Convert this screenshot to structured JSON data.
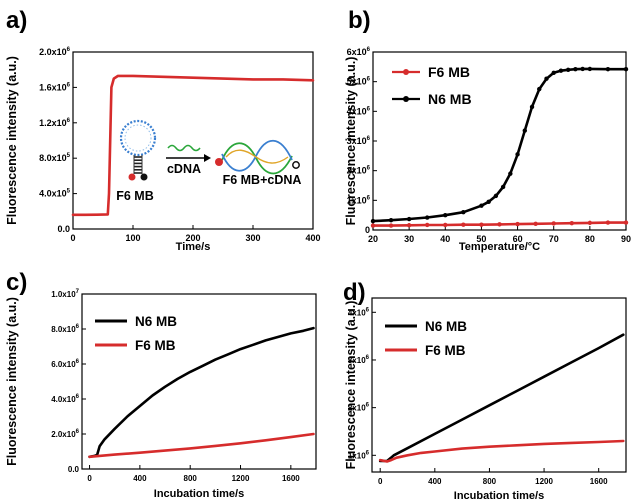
{
  "colors": {
    "red": "#d62c2c",
    "black": "#000000",
    "axis": "#000000"
  },
  "chart_data": [
    {
      "type": "line",
      "panel_label": "a)",
      "xlabel": "Time/s",
      "ylabel": "Fluorescence intensity (a.u.)",
      "xlim": [
        0,
        400
      ],
      "ylim": [
        0,
        2000000
      ],
      "x_ticks": [
        "0",
        "100",
        "200",
        "300",
        "400"
      ],
      "y_ticks": [
        {
          "mant": "0.0",
          "exp": ""
        },
        {
          "mant": "4.0x10",
          "exp": "5"
        },
        {
          "mant": "8.0x10",
          "exp": "5"
        },
        {
          "mant": "1.2x10",
          "exp": "6"
        },
        {
          "mant": "1.6x10",
          "exp": "6"
        },
        {
          "mant": "2.0x10",
          "exp": "6"
        }
      ],
      "series": [
        {
          "color": "#d62c2c",
          "x": [
            0,
            20,
            40,
            58,
            60,
            62,
            64,
            68,
            75,
            100,
            150,
            200,
            250,
            300,
            350,
            400
          ],
          "y": [
            160000,
            160000,
            162000,
            165000,
            400000,
            1000000,
            1600000,
            1700000,
            1730000,
            1730000,
            1720000,
            1710000,
            1700000,
            1690000,
            1690000,
            1680000
          ]
        }
      ],
      "annotations": {
        "probe_label": "F6 MB",
        "arrow_label": "cDNA",
        "product_label": "F6 MB+cDNA"
      }
    },
    {
      "type": "line",
      "panel_label": "b)",
      "xlabel": "Temperature/°C",
      "ylabel": "Fluorescence intensity (a.u.)",
      "xlim": [
        20,
        90
      ],
      "ylim": [
        0,
        6000000
      ],
      "x_ticks": [
        "20",
        "30",
        "40",
        "50",
        "60",
        "70",
        "80",
        "90"
      ],
      "y_ticks": [
        {
          "mant": "0",
          "exp": ""
        },
        {
          "mant": "1x10",
          "exp": "6"
        },
        {
          "mant": "2x10",
          "exp": "6"
        },
        {
          "mant": "3x10",
          "exp": "6"
        },
        {
          "mant": "4x10",
          "exp": "6"
        },
        {
          "mant": "5x10",
          "exp": "6"
        },
        {
          "mant": "6x10",
          "exp": "6"
        }
      ],
      "series": [
        {
          "name": "F6 MB",
          "color": "#d62c2c",
          "x": [
            20,
            25,
            30,
            35,
            40,
            45,
            50,
            55,
            60,
            65,
            70,
            75,
            80,
            85,
            90
          ],
          "y": [
            150000,
            150000,
            160000,
            170000,
            170000,
            180000,
            180000,
            190000,
            200000,
            210000,
            220000,
            230000,
            240000,
            250000,
            250000
          ]
        },
        {
          "name": "N6 MB",
          "color": "#000000",
          "x": [
            20,
            25,
            30,
            35,
            40,
            45,
            50,
            52,
            54,
            56,
            58,
            60,
            62,
            64,
            66,
            68,
            70,
            72,
            74,
            76,
            78,
            80,
            85,
            90
          ],
          "y": [
            300000,
            330000,
            370000,
            420000,
            500000,
            600000,
            820000,
            950000,
            1150000,
            1450000,
            1900000,
            2550000,
            3350000,
            4150000,
            4750000,
            5100000,
            5300000,
            5370000,
            5400000,
            5420000,
            5430000,
            5430000,
            5420000,
            5420000
          ]
        }
      ]
    },
    {
      "type": "line",
      "panel_label": "c)",
      "xlabel": "Incubation time/s",
      "ylabel": "Fluorescence intensity (a.u.)",
      "xlim": [
        -60,
        1800
      ],
      "ylim": [
        0,
        10000000
      ],
      "x_ticks": [
        "0",
        "400",
        "800",
        "1200",
        "1600"
      ],
      "x_tick_values": [
        0,
        400,
        800,
        1200,
        1600
      ],
      "y_ticks": [
        {
          "mant": "0.0",
          "exp": ""
        },
        {
          "mant": "2.0x10",
          "exp": "6"
        },
        {
          "mant": "4.0x10",
          "exp": "6"
        },
        {
          "mant": "6.0x10",
          "exp": "6"
        },
        {
          "mant": "8.0x10",
          "exp": "6"
        },
        {
          "mant": "1.0x10",
          "exp": "7"
        }
      ],
      "series": [
        {
          "name": "N6 MB",
          "color": "#000000",
          "x": [
            0,
            40,
            60,
            80,
            120,
            200,
            300,
            400,
            500,
            600,
            700,
            800,
            900,
            1000,
            1100,
            1200,
            1300,
            1400,
            1500,
            1600,
            1700,
            1780
          ],
          "y": [
            700000,
            750000,
            800000,
            1300000,
            1700000,
            2300000,
            3000000,
            3600000,
            4200000,
            4700000,
            5150000,
            5550000,
            5900000,
            6250000,
            6550000,
            6850000,
            7100000,
            7350000,
            7550000,
            7750000,
            7900000,
            8050000
          ]
        },
        {
          "name": "F6 MB",
          "color": "#d62c2c",
          "x": [
            0,
            100,
            200,
            400,
            600,
            800,
            1000,
            1200,
            1400,
            1600,
            1780
          ],
          "y": [
            700000,
            760000,
            820000,
            930000,
            1050000,
            1180000,
            1320000,
            1470000,
            1640000,
            1820000,
            2000000
          ]
        }
      ]
    },
    {
      "type": "line",
      "panel_label": "d)",
      "xlabel": "Incubation time/s",
      "ylabel": "Fluorescence intensity (a.u.)",
      "xlim": [
        -60,
        1800
      ],
      "ylim": [
        650000,
        4300000
      ],
      "x_ticks": [
        "0",
        "400",
        "800",
        "1200",
        "1600"
      ],
      "x_tick_values": [
        0,
        400,
        800,
        1200,
        1600
      ],
      "y_ticks": [
        {
          "mant": "1x10",
          "exp": "6",
          "value": 1000000
        },
        {
          "mant": "2x10",
          "exp": "6",
          "value": 2000000
        },
        {
          "mant": "3x10",
          "exp": "6",
          "value": 3000000
        },
        {
          "mant": "4x10",
          "exp": "6",
          "value": 4000000
        }
      ],
      "series": [
        {
          "name": "N6 MB",
          "color": "#000000",
          "x": [
            0,
            50,
            80,
            100,
            200,
            400,
            600,
            800,
            1000,
            1200,
            1400,
            1600,
            1780
          ],
          "y": [
            880000,
            880000,
            950000,
            1000000,
            1150000,
            1450000,
            1750000,
            2050000,
            2350000,
            2650000,
            2950000,
            3250000,
            3530000
          ]
        },
        {
          "name": "F6 MB",
          "color": "#d62c2c",
          "x": [
            0,
            50,
            80,
            120,
            200,
            300,
            400,
            600,
            800,
            1000,
            1200,
            1400,
            1600,
            1780
          ],
          "y": [
            900000,
            870000,
            900000,
            950000,
            1000000,
            1050000,
            1080000,
            1140000,
            1180000,
            1210000,
            1240000,
            1260000,
            1280000,
            1300000
          ]
        }
      ]
    }
  ]
}
